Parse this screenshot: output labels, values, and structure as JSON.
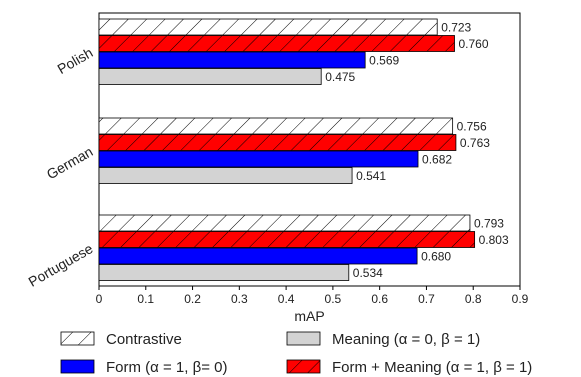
{
  "chart_data": {
    "type": "bar",
    "orientation": "horizontal",
    "categories": [
      "Polish",
      "German",
      "Portuguese"
    ],
    "series": [
      {
        "name": "Contrastive",
        "values": [
          0.723,
          0.756,
          0.793
        ],
        "fill": "#ffffff",
        "pattern": "hatch"
      },
      {
        "name": "Form + Meaning (α = 1, β = 1)",
        "values": [
          0.76,
          0.763,
          0.803
        ],
        "fill": "#ff0000",
        "pattern": "hatch"
      },
      {
        "name": "Form (α = 1, β= 0)",
        "values": [
          0.569,
          0.682,
          0.68
        ],
        "fill": "#0000ff",
        "pattern": "none"
      },
      {
        "name": "Meaning (α = 0, β = 1)",
        "values": [
          0.475,
          0.541,
          0.534
        ],
        "fill": "#d3d3d3",
        "pattern": "none"
      }
    ],
    "value_labels": [
      [
        "0.723",
        "0.756",
        "0.793"
      ],
      [
        "0.760",
        "0.763",
        "0.803"
      ],
      [
        "0.569",
        "0.682",
        "0.680"
      ],
      [
        "0.475",
        "0.541",
        "0.534"
      ]
    ],
    "xlabel": "mAP",
    "xlim": [
      0,
      0.9
    ],
    "xticks": [
      "0",
      "0.1",
      "0.2",
      "0.3",
      "0.4",
      "0.5",
      "0.6",
      "0.7",
      "0.8",
      "0.9"
    ],
    "grid": false,
    "legend_position": "bottom",
    "legend": [
      {
        "label": "Contrastive",
        "fill": "#ffffff",
        "pattern": "hatch"
      },
      {
        "label": "Meaning (α = 0, β = 1)",
        "fill": "#d3d3d3",
        "pattern": "none"
      },
      {
        "label": "Form (α = 1, β= 0)",
        "fill": "#0000ff",
        "pattern": "none"
      },
      {
        "label": "Form + Meaning (α = 1, β = 1)",
        "fill": "#ff0000",
        "pattern": "hatch"
      }
    ]
  }
}
